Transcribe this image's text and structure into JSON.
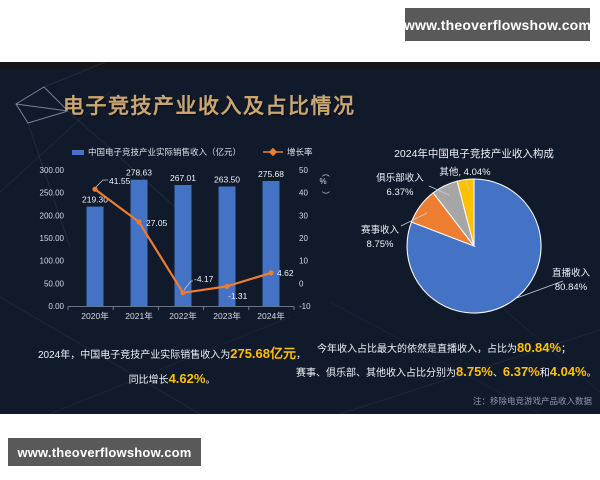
{
  "watermark": {
    "text": "www.theoverflowshow.com"
  },
  "slide": {
    "title": "电子竞技产业收入及占比情况"
  },
  "colors": {
    "slide_background": "#111a2b",
    "title_gold": "#c9a671",
    "bar": "#4472c4",
    "line": "#ed7d31",
    "highlight": "#ffc000",
    "pie": [
      "#4472c4",
      "#ed7d31",
      "#a6a6a6",
      "#ffc000"
    ],
    "watermark_bar": "#595959"
  },
  "chart_data": [
    {
      "type": "bar+line",
      "title": "",
      "categories": [
        "2020年",
        "2021年",
        "2022年",
        "2023年",
        "2024年"
      ],
      "series": [
        {
          "name": "中国电子竞技产业实际销售收入（亿元）",
          "type": "bar",
          "axis": "left",
          "values": [
            219.3,
            278.63,
            267.01,
            263.5,
            275.68
          ]
        },
        {
          "name": "增长率",
          "type": "line",
          "axis": "right",
          "values": [
            41.55,
            27.05,
            -4.17,
            -1.31,
            4.62
          ]
        }
      ],
      "left_axis": {
        "min": 0,
        "max": 300,
        "ticks": [
          "300.00",
          "250.00",
          "200.00",
          "150.00",
          "100.00",
          "50.00",
          "0.00"
        ]
      },
      "right_axis": {
        "min": -10,
        "max": 50,
        "label": "（%）",
        "ticks": [
          "50",
          "40",
          "30",
          "20",
          "10",
          "0",
          "-10"
        ]
      },
      "legend_position": "top",
      "grid": false
    },
    {
      "type": "pie",
      "title": "2024年中国电子竞技产业收入构成",
      "labels": [
        "直播收入",
        "赛事收入",
        "俱乐部收入",
        "其他"
      ],
      "values": [
        80.84,
        8.75,
        6.37,
        4.04
      ],
      "start_angle_deg": 0,
      "direction": "clockwise"
    }
  ],
  "captions": {
    "left": {
      "line1": [
        {
          "t": "2024年，中国电子竞技产业实际销售收入为"
        },
        {
          "t": "275.68亿元",
          "hl": true
        },
        {
          "t": "，"
        }
      ],
      "line2": [
        {
          "t": "同比增长"
        },
        {
          "t": "4.62%",
          "hl": true
        },
        {
          "t": "。"
        }
      ]
    },
    "right": {
      "line1": [
        {
          "t": "今年收入占比最大的依然是直播收入，占比为"
        },
        {
          "t": "80.84%",
          "hl": true
        },
        {
          "t": "；"
        }
      ],
      "line2": [
        {
          "t": "赛事、俱乐部、其他收入占比分别为"
        },
        {
          "t": "8.75%",
          "hl": true
        },
        {
          "t": "、"
        },
        {
          "t": "6.37%",
          "hl": true
        },
        {
          "t": "和"
        },
        {
          "t": "4.04%",
          "hl": true
        },
        {
          "t": "。"
        }
      ],
      "note": "注：移除电竞游戏产品收入数据"
    }
  }
}
